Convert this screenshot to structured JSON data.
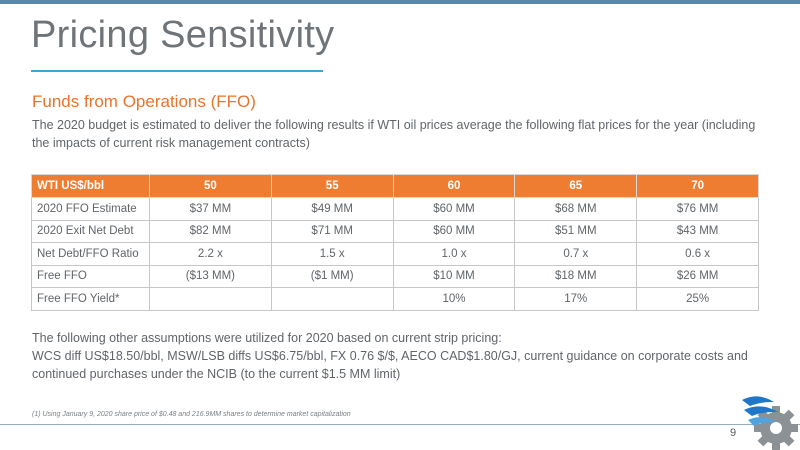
{
  "slide": {
    "title": "Pricing Sensitivity",
    "subtitle": "Funds from Operations (FFO)",
    "intro": "The 2020 budget is estimated to deliver the following results if WTI oil prices average the following flat prices for the year (including the impacts of current risk management contracts)",
    "page_number": "9"
  },
  "table": {
    "header": [
      "WTI US$/bbl",
      "50",
      "55",
      "60",
      "65",
      "70"
    ],
    "rows": [
      [
        "2020 FFO Estimate",
        "$37 MM",
        "$49 MM",
        "$60 MM",
        "$68 MM",
        "$76 MM"
      ],
      [
        "2020 Exit Net Debt",
        "$82 MM",
        "$71 MM",
        "$60 MM",
        "$51 MM",
        "$43 MM"
      ],
      [
        "Net Debt/FFO Ratio",
        "2.2 x",
        "1.5 x",
        "1.0 x",
        "0.7 x",
        "0.6 x"
      ],
      [
        "Free FFO",
        "($13 MM)",
        "($1 MM)",
        "$10 MM",
        "$18 MM",
        "$26 MM"
      ],
      [
        "Free FFO Yield*",
        "",
        "",
        "10%",
        "17%",
        "25%"
      ]
    ]
  },
  "assumptions": {
    "line1": "The following other assumptions were utilized for 2020  based on current strip pricing:",
    "line2": "WCS diff US$18.50/bbl, MSW/LSB diffs US$6.75/bbl, FX 0.76 $/$, AECO CAD$1.80/GJ, current guidance on corporate costs and continued purchases under the NCIB (to the current $1.5 MM limit)"
  },
  "footnote": "(1)  Using January 9, 2020 share price of $0.48 and 216.9MM shares to determine market capitalization",
  "colors": {
    "accent_orange": "#ee7d31",
    "title_rule_blue": "#39a7cf",
    "top_bar": "#5b87a8",
    "logo_blue": "#1f77c9",
    "logo_gray": "#8c9196"
  },
  "logo": {
    "icon": "gear-wave-logo-icon"
  }
}
